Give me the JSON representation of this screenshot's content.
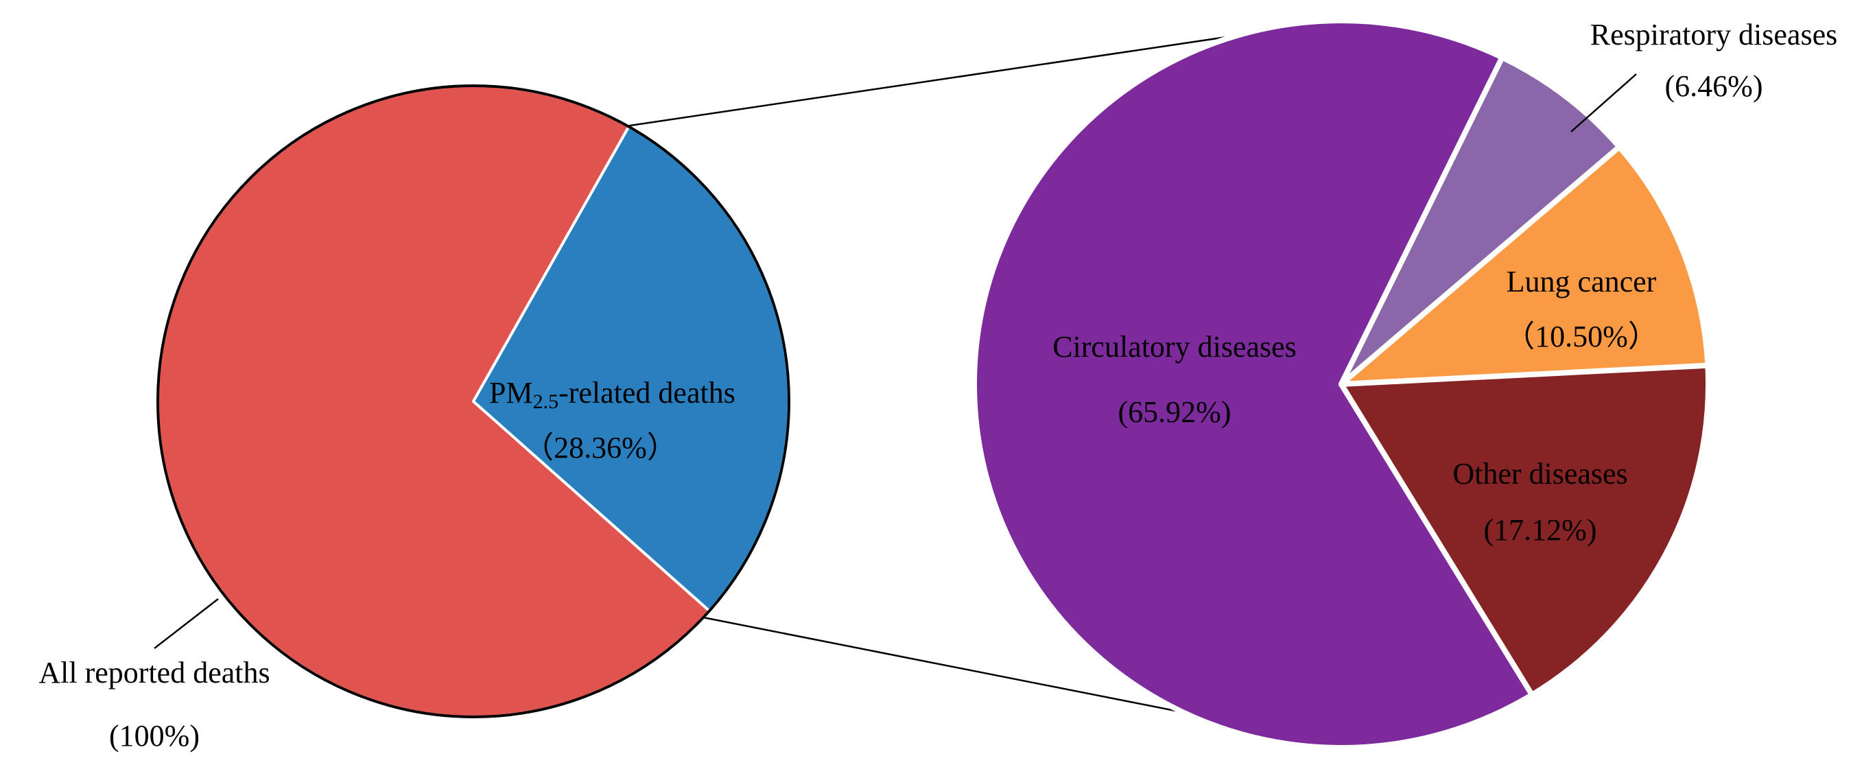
{
  "chart_data": [
    {
      "type": "pie",
      "slices": [
        {
          "label_main": "All reported deaths",
          "label_pct": "(100%)",
          "value": 71.64,
          "color": "#e0534f"
        },
        {
          "label_main": "PM",
          "label_sub": "2.5",
          "label_rest": "-related deaths",
          "label_pct": "（28.36%）",
          "value": 28.36,
          "color": "#2a7fbf"
        }
      ]
    },
    {
      "type": "pie",
      "slices": [
        {
          "label_main": "Circulatory diseases",
          "label_pct": "(65.92%)",
          "value": 65.92,
          "color": "#7d2a9d"
        },
        {
          "label_main": "Respiratory diseases",
          "label_pct": "(6.46%)",
          "value": 6.46,
          "color": "#8a67a8"
        },
        {
          "label_main": "Lung cancer",
          "label_pct": "（10.50%）",
          "value": 10.5,
          "color": "#fb9a44"
        },
        {
          "label_main": "Other diseases",
          "label_pct": "(17.12%)",
          "value": 17.12,
          "color": "#862324"
        }
      ]
    }
  ]
}
